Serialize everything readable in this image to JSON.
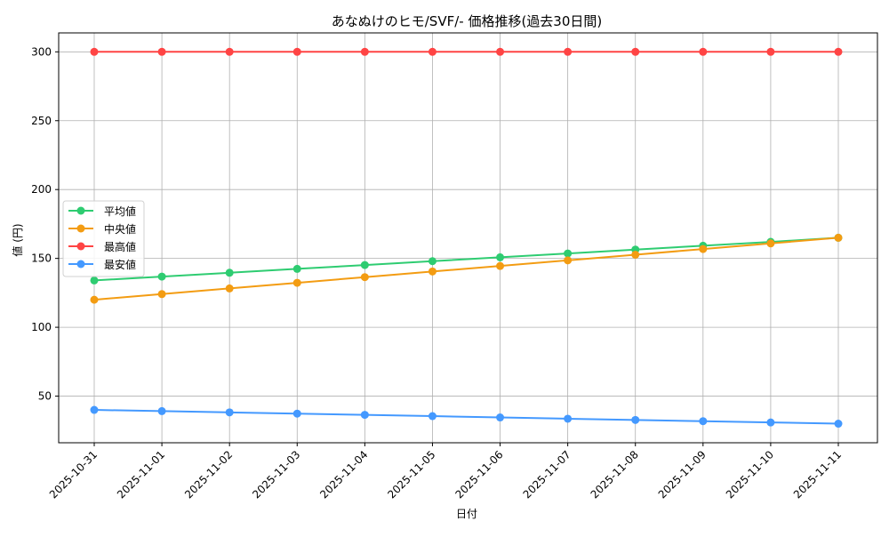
{
  "chart_data": {
    "type": "line",
    "title": "あなぬけのヒモ/SVF/- 価格推移(過去30日間)",
    "xlabel": "日付",
    "ylabel": "値 (円)",
    "categories": [
      "2025-10-31",
      "2025-11-01",
      "2025-11-02",
      "2025-11-03",
      "2025-11-04",
      "2025-11-05",
      "2025-11-06",
      "2025-11-07",
      "2025-11-08",
      "2025-11-09",
      "2025-11-10",
      "2025-11-11"
    ],
    "yticks": [
      50,
      100,
      150,
      200,
      250,
      300
    ],
    "ylim": [
      16,
      313
    ],
    "grid": true,
    "legend_position": "center-left",
    "series": [
      {
        "name": "平均値",
        "color": "#2ecc71",
        "values": [
          134,
          136.8,
          139.6,
          142.4,
          145.2,
          148,
          150.8,
          153.6,
          156.4,
          159.2,
          162,
          165
        ]
      },
      {
        "name": "中央値",
        "color": "#f39c12",
        "values": [
          120,
          124.1,
          128.2,
          132.3,
          136.4,
          140.5,
          144.5,
          148.6,
          152.7,
          156.8,
          160.9,
          165
        ]
      },
      {
        "name": "最高値",
        "color": "#ff4444",
        "values": [
          300,
          300,
          300,
          300,
          300,
          300,
          300,
          300,
          300,
          300,
          300,
          300
        ]
      },
      {
        "name": "最安値",
        "color": "#4499ff",
        "values": [
          40,
          39.1,
          38.2,
          37.3,
          36.4,
          35.5,
          34.5,
          33.6,
          32.7,
          31.8,
          30.9,
          30
        ]
      }
    ]
  }
}
